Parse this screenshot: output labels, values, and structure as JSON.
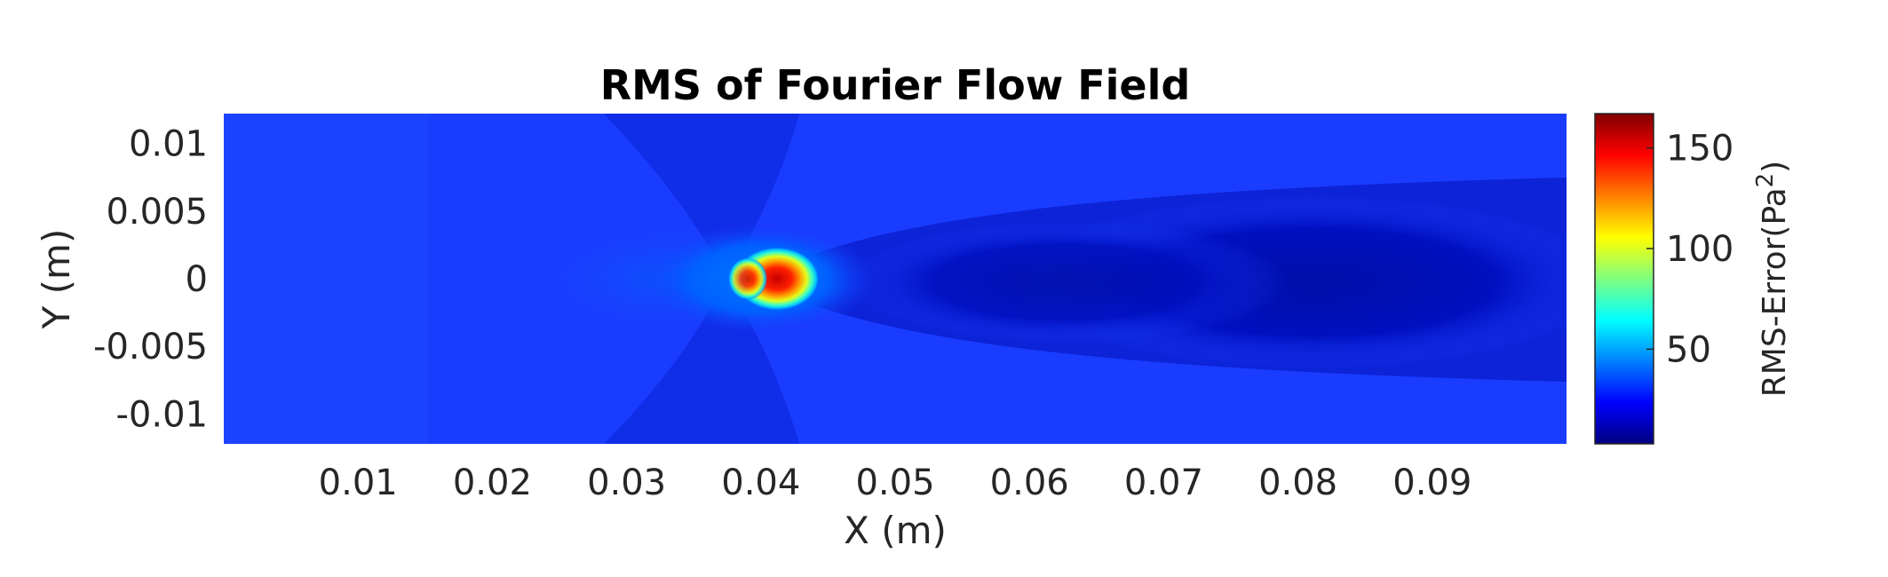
{
  "chart_data": {
    "type": "heatmap",
    "title": "RMS of Fourier Flow Field",
    "xlabel": "X (m)",
    "ylabel": "Y (m)",
    "xlim": [
      0,
      0.1
    ],
    "ylim": [
      -0.0122,
      0.0122
    ],
    "x_ticks": [
      0.01,
      0.02,
      0.03,
      0.04,
      0.05,
      0.06,
      0.07,
      0.08,
      0.09
    ],
    "x_tick_labels": [
      "0.01",
      "0.02",
      "0.03",
      "0.04",
      "0.05",
      "0.06",
      "0.07",
      "0.08",
      "0.09"
    ],
    "y_ticks": [
      0.01,
      0.005,
      0,
      -0.005,
      -0.01
    ],
    "y_tick_labels": [
      "0.01",
      "0.005",
      "0",
      "-0.005",
      "-0.01"
    ],
    "colorbar": {
      "label": "RMS-Error(Pa",
      "label_superscript": "2",
      "label_close": ")",
      "range": [
        3,
        167
      ],
      "ticks": [
        50,
        100,
        150
      ],
      "tick_labels": [
        "50",
        "100",
        "150"
      ],
      "colormap": "jet"
    },
    "field": {
      "background_value": 25,
      "features": [
        {
          "kind": "peak",
          "x": 0.0415,
          "y": 0.0,
          "value": 165
        },
        {
          "kind": "peak",
          "x": 0.0395,
          "y": 0.0,
          "value": 110
        },
        {
          "kind": "low-wake",
          "x_start": 0.045,
          "x_end": 0.098,
          "y": 0.0,
          "value": 5
        },
        {
          "kind": "elevated-upstream",
          "x": 0.033,
          "y": 0.0,
          "value": 40
        }
      ]
    }
  }
}
